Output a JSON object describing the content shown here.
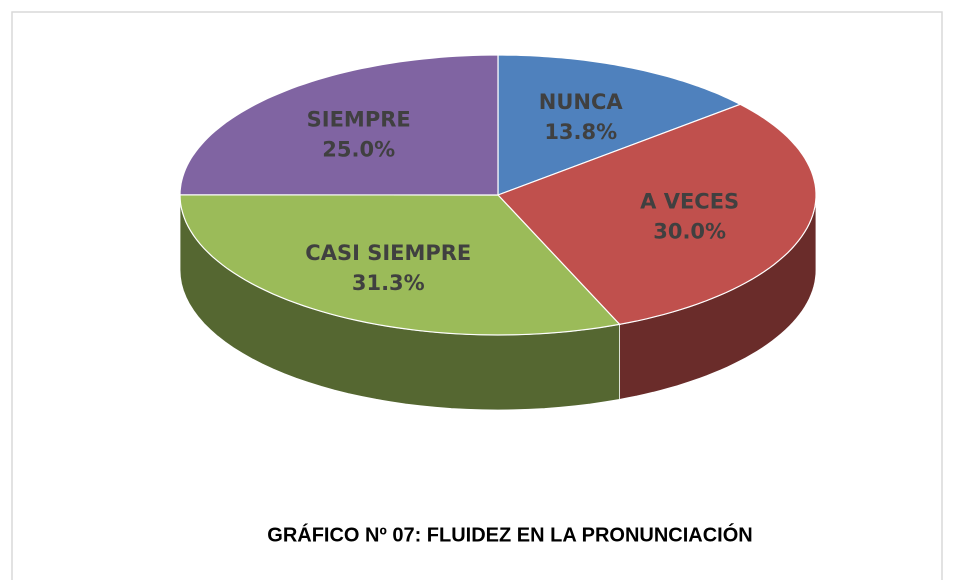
{
  "chart_data": {
    "type": "pie",
    "title": "GRÁFICO Nº 07: FLUIDEZ EN LA PRONUNCIACIÓN",
    "categories": [
      "NUNCA",
      "A VECES",
      "CASI SIEMPRE",
      "SIEMPRE"
    ],
    "values": [
      13.8,
      30.0,
      31.3,
      25.0
    ],
    "value_labels": [
      "13.8%",
      "30.0%",
      "31.3%",
      "25.0%"
    ],
    "colors": [
      "#4f81bd",
      "#c0504d",
      "#9bbb59",
      "#8064a2"
    ]
  }
}
